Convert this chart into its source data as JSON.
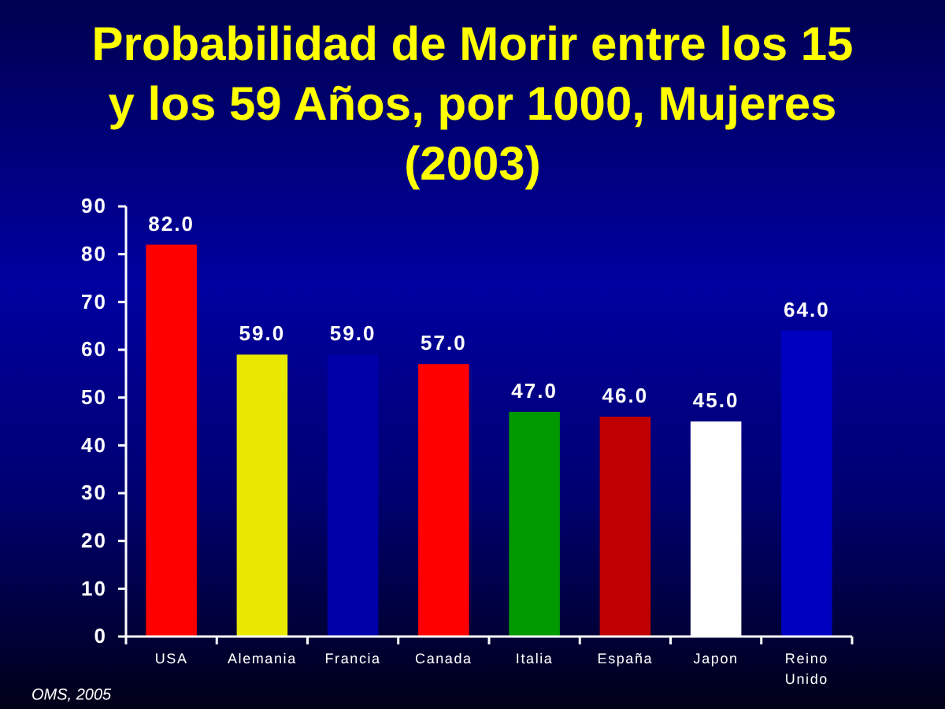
{
  "chart_data": {
    "type": "bar",
    "title": "Probabilidad de Morir entre los 15\ny los 59 Años, por 1000, Mujeres\n(2003)",
    "categories": [
      "USA",
      "Alemania",
      "Francia",
      "Canada",
      "Italia",
      "España",
      "Japon",
      "Reino Unido"
    ],
    "values": [
      82,
      59,
      59,
      57,
      47,
      46,
      45,
      64
    ],
    "value_labels": [
      "82.0",
      "59.0",
      "59.0",
      "57.0",
      "47.0",
      "46.0",
      "45.0",
      "64.0"
    ],
    "colors": [
      "#ff0000",
      "#e8e800",
      "#0000a8",
      "#ff0000",
      "#009900",
      "#c00000",
      "#ffffff",
      "#0000c0"
    ],
    "ylim": [
      0,
      90
    ],
    "yticks": [
      0,
      10,
      20,
      30,
      40,
      50,
      60,
      70,
      80,
      90
    ],
    "annotations": [
      "OMS, 2005"
    ]
  }
}
